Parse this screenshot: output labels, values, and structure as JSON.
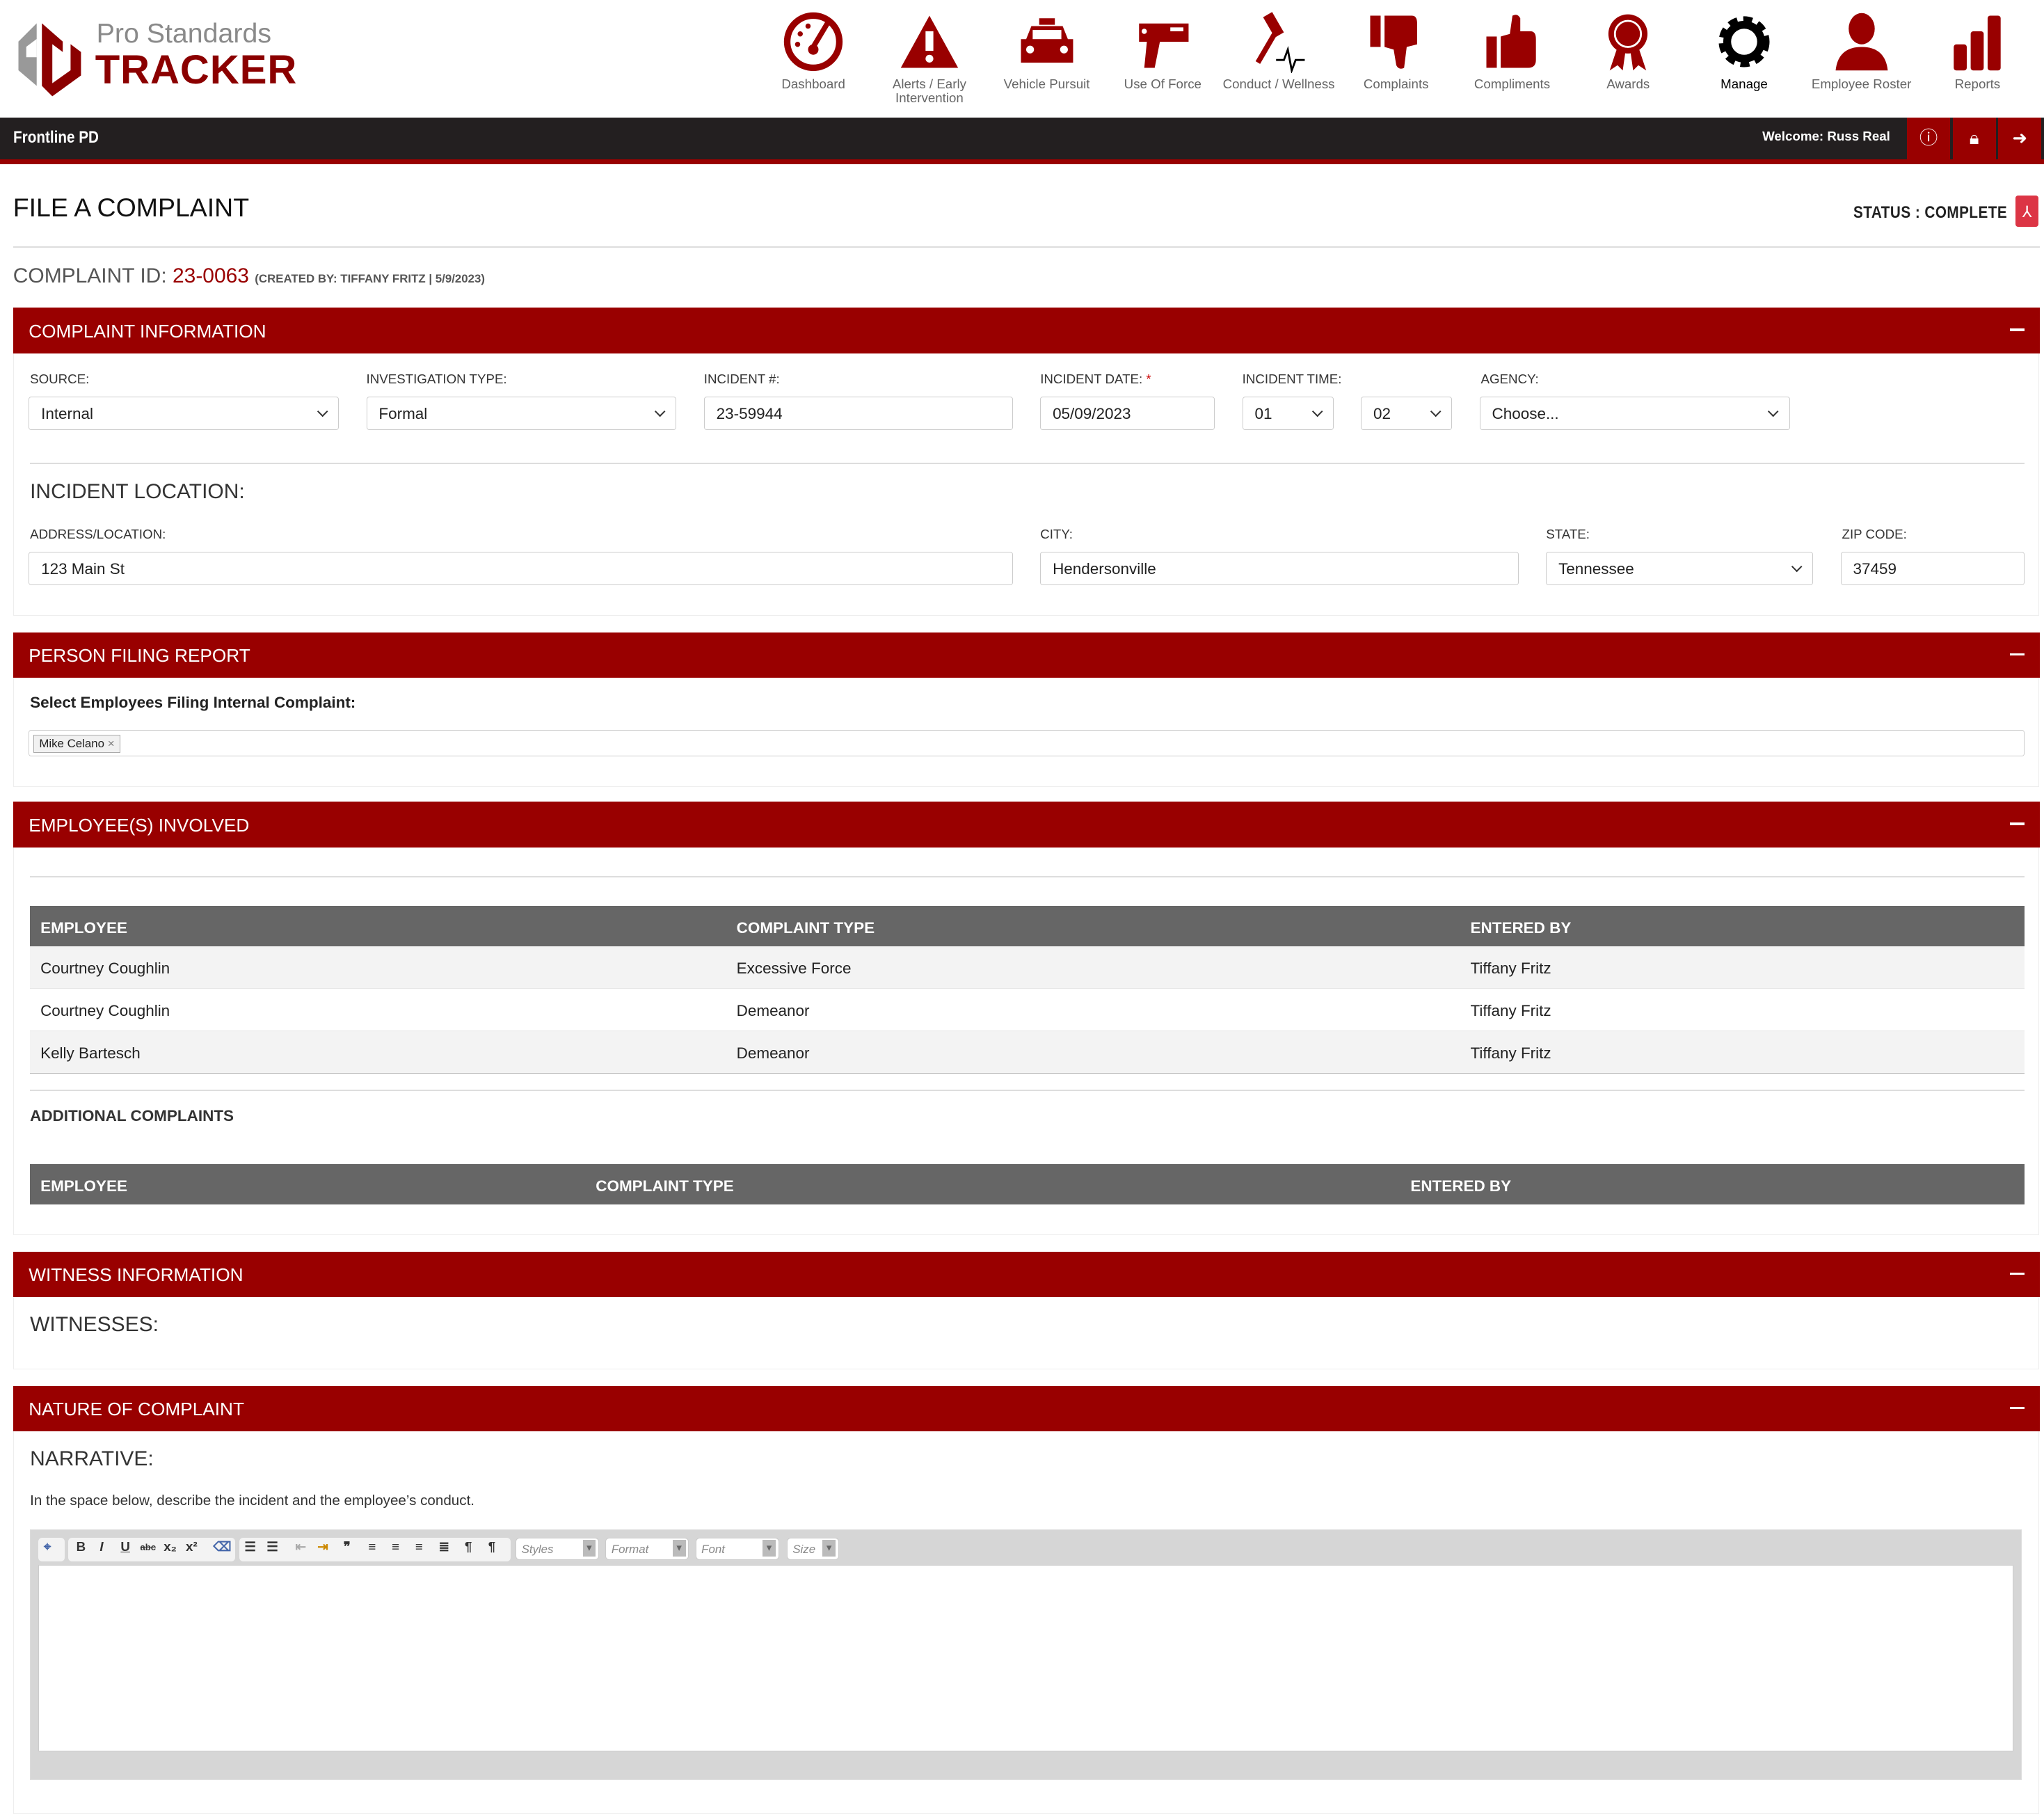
{
  "brand": {
    "line1": "Pro Standards",
    "line2": "TRACKER"
  },
  "colors": {
    "brand_red": "#990000",
    "dark_bar": "#231f20",
    "table_header": "#666666"
  },
  "nav": [
    {
      "label": "Dashboard",
      "icon": "speedometer-icon"
    },
    {
      "label": "Alerts / Early Intervention",
      "icon": "warning-icon"
    },
    {
      "label": "Vehicle Pursuit",
      "icon": "police-car-icon"
    },
    {
      "label": "Use Of Force",
      "icon": "taser-icon"
    },
    {
      "label": "Conduct / Wellness",
      "icon": "gavel-heartbeat-icon"
    },
    {
      "label": "Complaints",
      "icon": "thumbs-down-icon"
    },
    {
      "label": "Compliments",
      "icon": "thumbs-up-icon"
    },
    {
      "label": "Awards",
      "icon": "award-ribbon-icon"
    },
    {
      "label": "Manage",
      "icon": "gear-icon",
      "active": true
    },
    {
      "label": "Employee Roster",
      "icon": "person-icon"
    },
    {
      "label": "Reports",
      "icon": "bar-chart-icon"
    }
  ],
  "topbar": {
    "org": "Frontline PD",
    "welcome": "Welcome: Russ Real"
  },
  "page": {
    "title": "FILE A COMPLAINT",
    "status": "STATUS : COMPLETE",
    "complaint_id_label": "COMPLAINT ID:",
    "complaint_id": "23-0063",
    "created_by": "(CREATED BY: TIFFANY FRITZ | 5/9/2023)"
  },
  "complaint_info": {
    "title": "COMPLAINT INFORMATION",
    "source": {
      "label": "SOURCE:",
      "value": "Internal"
    },
    "investigation_type": {
      "label": "INVESTIGATION TYPE:",
      "value": "Formal"
    },
    "incident_no": {
      "label": "INCIDENT #:",
      "value": "23-59944"
    },
    "incident_date": {
      "label": "INCIDENT DATE:",
      "required": "*",
      "value": "05/09/2023"
    },
    "incident_time": {
      "label": "INCIDENT TIME:",
      "hour": "01",
      "minute": "02"
    },
    "agency": {
      "label": "AGENCY:",
      "value": "Choose..."
    },
    "location_title": "INCIDENT LOCATION:",
    "address": {
      "label": "ADDRESS/LOCATION:",
      "value": "123 Main St"
    },
    "city": {
      "label": "CITY:",
      "value": "Hendersonville"
    },
    "state": {
      "label": "STATE:",
      "value": "Tennessee"
    },
    "zip": {
      "label": "ZIP CODE:",
      "value": "37459"
    }
  },
  "person_filing": {
    "title": "PERSON FILING REPORT",
    "label": "Select Employees Filing Internal Complaint:",
    "tags": [
      "Mike Celano"
    ]
  },
  "employees": {
    "title": "EMPLOYEE(S) INVOLVED",
    "columns": [
      "EMPLOYEE",
      "COMPLAINT TYPE",
      "ENTERED BY"
    ],
    "rows": [
      [
        "Courtney Coughlin",
        "Excessive Force",
        "Tiffany Fritz"
      ],
      [
        "Courtney Coughlin",
        "Demeanor",
        "Tiffany Fritz"
      ],
      [
        "Kelly Bartesch",
        "Demeanor",
        "Tiffany Fritz"
      ]
    ],
    "additional_title": "ADDITIONAL COMPLAINTS",
    "additional_columns": [
      "EMPLOYEE",
      "COMPLAINT TYPE",
      "ENTERED BY"
    ]
  },
  "witness": {
    "title": "WITNESS INFORMATION",
    "sub": "WITNESSES:"
  },
  "nature": {
    "title": "NATURE OF COMPLAINT",
    "sub": "NARRATIVE:",
    "instructions": "In the space below, describe the incident and the employee’s conduct.",
    "editor": {
      "styles": "Styles",
      "format": "Format",
      "font": "Font",
      "size": "Size"
    }
  }
}
